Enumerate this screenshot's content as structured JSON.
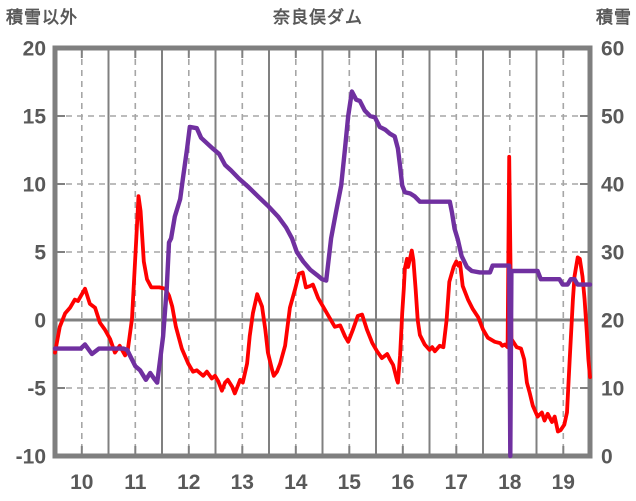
{
  "header": {
    "left_axis_label": "積雪以外",
    "title": "奈良俣ダム",
    "right_axis_label": "積雪"
  },
  "colors": {
    "red_series": "#ff0000",
    "purple_series": "#7030a0",
    "solid_grid": "#808080",
    "minor_grid": "#a6a6a6",
    "frame": "#7f7f7f",
    "text": "#595959",
    "background": "#ffffff"
  },
  "chart_data": {
    "type": "line",
    "title": "奈良俣ダム",
    "dual_axis": true,
    "grid": {
      "solid_zero_line": true,
      "minor_dashed": true,
      "legend": "none"
    },
    "x_axis": {
      "min": 9.5,
      "max": 19.5,
      "tick_labels": [
        "10",
        "11",
        "12",
        "13",
        "14",
        "15",
        "16",
        "17",
        "18",
        "19"
      ],
      "label_positions": [
        10,
        11,
        12,
        13,
        14,
        15,
        16,
        17,
        18,
        19
      ],
      "solid_gridlines_at": [
        10.5,
        11.5,
        12.5,
        13.5,
        14.5,
        15.5,
        16.5,
        17.5,
        18.5
      ],
      "dashed_gridlines_at": [
        10,
        11,
        12,
        13,
        14,
        15,
        16,
        17,
        18,
        19
      ]
    },
    "left_axis": {
      "title": "積雪以外",
      "min": -10,
      "max": 20,
      "ticks": [
        20,
        15,
        10,
        5,
        0,
        -5,
        -10
      ],
      "dashed_gridline_values": [
        15,
        10,
        5,
        -5
      ],
      "solid_gridline_values": [
        0
      ]
    },
    "right_axis": {
      "title": "積雪",
      "min": 0,
      "max": 60,
      "ticks": [
        60,
        50,
        40,
        30,
        20,
        10,
        0
      ]
    },
    "series": [
      {
        "name": "積雪以外",
        "key": "non-snow",
        "axis": "left",
        "color": "#ff0000",
        "points": [
          [
            9.5,
            -2.4
          ],
          [
            9.59,
            -0.5
          ],
          [
            9.69,
            0.5
          ],
          [
            9.78,
            0.9
          ],
          [
            9.87,
            1.5
          ],
          [
            9.93,
            1.4
          ],
          [
            10.06,
            2.3
          ],
          [
            10.15,
            1.2
          ],
          [
            10.25,
            0.9
          ],
          [
            10.34,
            -0.2
          ],
          [
            10.43,
            -0.7
          ],
          [
            10.53,
            -1.4
          ],
          [
            10.62,
            -2.4
          ],
          [
            10.71,
            -1.9
          ],
          [
            10.81,
            -2.6
          ],
          [
            10.86,
            -2.2
          ],
          [
            10.94,
            0.1
          ],
          [
            11.02,
            6.0
          ],
          [
            11.06,
            9.1
          ],
          [
            11.1,
            8.0
          ],
          [
            11.16,
            4.3
          ],
          [
            11.22,
            3.0
          ],
          [
            11.3,
            2.4
          ],
          [
            11.45,
            2.4
          ],
          [
            11.56,
            2.3
          ],
          [
            11.63,
            1.8
          ],
          [
            11.69,
            1.0
          ],
          [
            11.76,
            -0.5
          ],
          [
            11.87,
            -2.1
          ],
          [
            11.99,
            -3.2
          ],
          [
            12.08,
            -3.8
          ],
          [
            12.15,
            -3.7
          ],
          [
            12.27,
            -4.1
          ],
          [
            12.34,
            -3.8
          ],
          [
            12.43,
            -4.3
          ],
          [
            12.49,
            -4.1
          ],
          [
            12.55,
            -4.5
          ],
          [
            12.62,
            -5.2
          ],
          [
            12.68,
            -4.6
          ],
          [
            12.73,
            -4.4
          ],
          [
            12.81,
            -4.9
          ],
          [
            12.86,
            -5.4
          ],
          [
            12.92,
            -4.8
          ],
          [
            12.96,
            -4.4
          ],
          [
            13.01,
            -4.6
          ],
          [
            13.09,
            -3.2
          ],
          [
            13.14,
            -1.2
          ],
          [
            13.2,
            0.5
          ],
          [
            13.28,
            1.9
          ],
          [
            13.37,
            1.0
          ],
          [
            13.43,
            -0.7
          ],
          [
            13.48,
            -2.4
          ],
          [
            13.56,
            -3.7
          ],
          [
            13.59,
            -4.1
          ],
          [
            13.65,
            -3.8
          ],
          [
            13.71,
            -3.2
          ],
          [
            13.8,
            -1.9
          ],
          [
            13.89,
            0.9
          ],
          [
            13.99,
            2.3
          ],
          [
            14.06,
            3.4
          ],
          [
            14.13,
            3.5
          ],
          [
            14.19,
            2.4
          ],
          [
            14.27,
            2.5
          ],
          [
            14.32,
            2.6
          ],
          [
            14.42,
            1.6
          ],
          [
            14.51,
            1.0
          ],
          [
            14.64,
            0.1
          ],
          [
            14.73,
            -0.5
          ],
          [
            14.83,
            -0.4
          ],
          [
            14.92,
            -1.2
          ],
          [
            14.98,
            -1.6
          ],
          [
            15.07,
            -0.7
          ],
          [
            15.16,
            0.3
          ],
          [
            15.24,
            0.4
          ],
          [
            15.33,
            -0.7
          ],
          [
            15.43,
            -1.7
          ],
          [
            15.52,
            -2.3
          ],
          [
            15.61,
            -2.8
          ],
          [
            15.71,
            -2.5
          ],
          [
            15.76,
            -2.9
          ],
          [
            15.82,
            -3.3
          ],
          [
            15.89,
            -4.4
          ],
          [
            15.91,
            -4.6
          ],
          [
            15.95,
            -2.6
          ],
          [
            15.99,
            0.5
          ],
          [
            16.02,
            2.3
          ],
          [
            16.04,
            3.8
          ],
          [
            16.08,
            4.5
          ],
          [
            16.1,
            3.9
          ],
          [
            16.17,
            5.1
          ],
          [
            16.2,
            4.4
          ],
          [
            16.24,
            2.3
          ],
          [
            16.28,
            0.0
          ],
          [
            16.32,
            -1.1
          ],
          [
            16.41,
            -1.8
          ],
          [
            16.5,
            -2.2
          ],
          [
            16.55,
            -2.0
          ],
          [
            16.6,
            -2.3
          ],
          [
            16.69,
            -1.9
          ],
          [
            16.76,
            -2.0
          ],
          [
            16.82,
            0.0
          ],
          [
            16.87,
            2.8
          ],
          [
            16.95,
            3.9
          ],
          [
            17.0,
            4.3
          ],
          [
            17.04,
            4.0
          ],
          [
            17.07,
            4.2
          ],
          [
            17.12,
            2.5
          ],
          [
            17.22,
            1.5
          ],
          [
            17.31,
            0.8
          ],
          [
            17.41,
            0.2
          ],
          [
            17.5,
            -0.7
          ],
          [
            17.59,
            -1.3
          ],
          [
            17.72,
            -1.6
          ],
          [
            17.82,
            -1.7
          ],
          [
            17.86,
            -1.9
          ],
          [
            17.91,
            -1.8
          ],
          [
            17.96,
            -2.0
          ],
          [
            17.99,
            12.0
          ],
          [
            18.03,
            -1.4
          ],
          [
            18.13,
            -2.0
          ],
          [
            18.21,
            -2.1
          ],
          [
            18.27,
            -2.9
          ],
          [
            18.32,
            -4.6
          ],
          [
            18.37,
            -5.3
          ],
          [
            18.43,
            -6.3
          ],
          [
            18.52,
            -7.1
          ],
          [
            18.6,
            -6.8
          ],
          [
            18.65,
            -7.4
          ],
          [
            18.71,
            -6.9
          ],
          [
            18.79,
            -7.5
          ],
          [
            18.84,
            -7.1
          ],
          [
            18.9,
            -8.2
          ],
          [
            18.95,
            -8.1
          ],
          [
            19.02,
            -7.7
          ],
          [
            19.07,
            -6.8
          ],
          [
            19.12,
            -2.9
          ],
          [
            19.18,
            1.5
          ],
          [
            19.21,
            3.2
          ],
          [
            19.27,
            4.6
          ],
          [
            19.31,
            4.5
          ],
          [
            19.36,
            3.2
          ],
          [
            19.4,
            1.5
          ],
          [
            19.44,
            -0.9
          ],
          [
            19.47,
            -2.9
          ],
          [
            19.5,
            -4.2
          ]
        ]
      },
      {
        "name": "積雪",
        "key": "snow-depth",
        "axis": "right",
        "color": "#7030a0",
        "points": [
          [
            9.5,
            15.8
          ],
          [
            9.98,
            15.8
          ],
          [
            10.06,
            16.4
          ],
          [
            10.19,
            15.0
          ],
          [
            10.32,
            15.8
          ],
          [
            10.78,
            15.8
          ],
          [
            10.85,
            15.6
          ],
          [
            10.9,
            14.8
          ],
          [
            11.0,
            13.2
          ],
          [
            11.09,
            12.6
          ],
          [
            11.2,
            11.2
          ],
          [
            11.28,
            12.2
          ],
          [
            11.35,
            11.4
          ],
          [
            11.41,
            10.8
          ],
          [
            11.52,
            17.6
          ],
          [
            11.59,
            24.8
          ],
          [
            11.63,
            31.4
          ],
          [
            11.67,
            32.0
          ],
          [
            11.74,
            35.2
          ],
          [
            11.84,
            37.8
          ],
          [
            11.89,
            40.8
          ],
          [
            11.97,
            45.2
          ],
          [
            12.02,
            48.4
          ],
          [
            12.15,
            48.2
          ],
          [
            12.23,
            46.8
          ],
          [
            12.34,
            46.0
          ],
          [
            12.45,
            45.2
          ],
          [
            12.57,
            44.4
          ],
          [
            12.68,
            42.8
          ],
          [
            12.79,
            42.0
          ],
          [
            12.94,
            40.8
          ],
          [
            13.11,
            39.6
          ],
          [
            13.29,
            38.2
          ],
          [
            13.48,
            36.8
          ],
          [
            13.67,
            35.2
          ],
          [
            13.82,
            33.6
          ],
          [
            13.93,
            32.0
          ],
          [
            14.02,
            30.0
          ],
          [
            14.14,
            28.6
          ],
          [
            14.27,
            27.4
          ],
          [
            14.4,
            26.6
          ],
          [
            14.49,
            26.0
          ],
          [
            14.57,
            25.8
          ],
          [
            14.66,
            32.0
          ],
          [
            14.75,
            35.8
          ],
          [
            14.85,
            39.8
          ],
          [
            14.92,
            45.2
          ],
          [
            14.98,
            50.0
          ],
          [
            15.05,
            53.6
          ],
          [
            15.13,
            52.4
          ],
          [
            15.2,
            52.2
          ],
          [
            15.29,
            50.8
          ],
          [
            15.39,
            50.0
          ],
          [
            15.48,
            49.8
          ],
          [
            15.57,
            48.4
          ],
          [
            15.67,
            48.0
          ],
          [
            15.76,
            47.4
          ],
          [
            15.85,
            47.0
          ],
          [
            15.91,
            45.2
          ],
          [
            15.95,
            42.6
          ],
          [
            15.99,
            39.8
          ],
          [
            16.04,
            38.8
          ],
          [
            16.14,
            38.6
          ],
          [
            16.22,
            38.2
          ],
          [
            16.32,
            37.4
          ],
          [
            16.88,
            37.4
          ],
          [
            16.92,
            35.8
          ],
          [
            16.97,
            33.4
          ],
          [
            17.03,
            31.8
          ],
          [
            17.1,
            29.4
          ],
          [
            17.2,
            27.8
          ],
          [
            17.29,
            27.2
          ],
          [
            17.44,
            27.0
          ],
          [
            17.63,
            27.0
          ],
          [
            17.68,
            28.0
          ],
          [
            17.99,
            28.0
          ],
          [
            18.01,
            0.0
          ],
          [
            18.03,
            27.2
          ],
          [
            18.52,
            27.2
          ],
          [
            18.58,
            26.0
          ],
          [
            18.93,
            26.0
          ],
          [
            18.99,
            25.2
          ],
          [
            19.08,
            25.2
          ],
          [
            19.14,
            26.0
          ],
          [
            19.21,
            26.0
          ],
          [
            19.27,
            25.2
          ],
          [
            19.5,
            25.2
          ]
        ]
      }
    ]
  }
}
